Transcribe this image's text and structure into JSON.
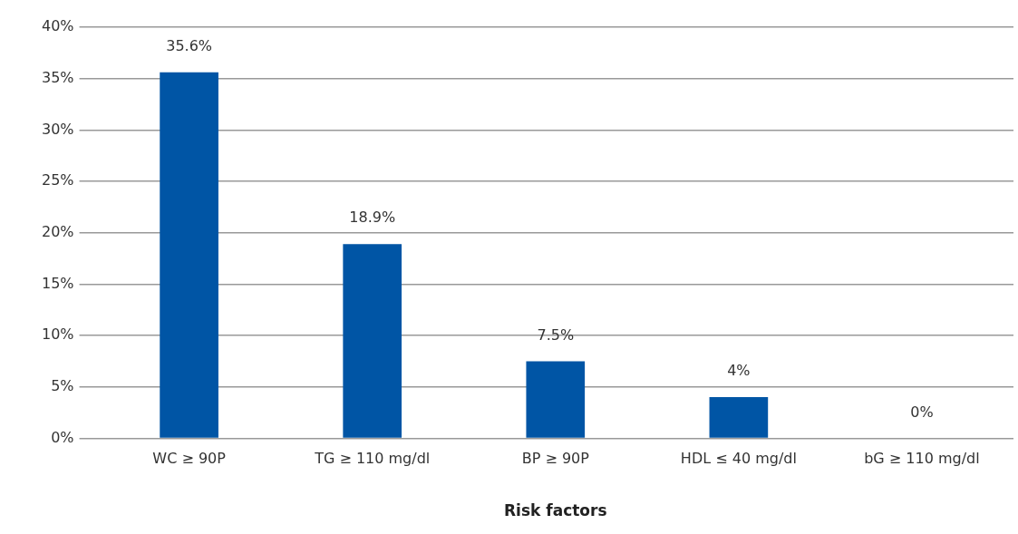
{
  "chart_data": {
    "type": "bar",
    "xlabel": "Risk factors",
    "categories": [
      "WC ≥ 90P",
      "TG ≥ 110 mg/dl",
      "BP ≥ 90P",
      "HDL ≤ 40 mg/dl",
      "bG ≥ 110 mg/dl"
    ],
    "values": [
      35.6,
      18.9,
      7.5,
      4,
      0
    ],
    "value_labels": [
      "35.6%",
      "18.9%",
      "7.5%",
      "4%",
      "0%"
    ],
    "color": "#0055a5",
    "ylim": [
      0,
      40
    ],
    "yticks": [
      {
        "value": 0,
        "label": "0%"
      },
      {
        "value": 5,
        "label": "5%"
      },
      {
        "value": 10,
        "label": "10%"
      },
      {
        "value": 15,
        "label": "15%"
      },
      {
        "value": 20,
        "label": "20%"
      },
      {
        "value": 25,
        "label": "25%"
      },
      {
        "value": 30,
        "label": "30%"
      },
      {
        "value": 35,
        "label": "35%"
      },
      {
        "value": 40,
        "label": "40%"
      }
    ],
    "grid": "y",
    "legend": false
  }
}
